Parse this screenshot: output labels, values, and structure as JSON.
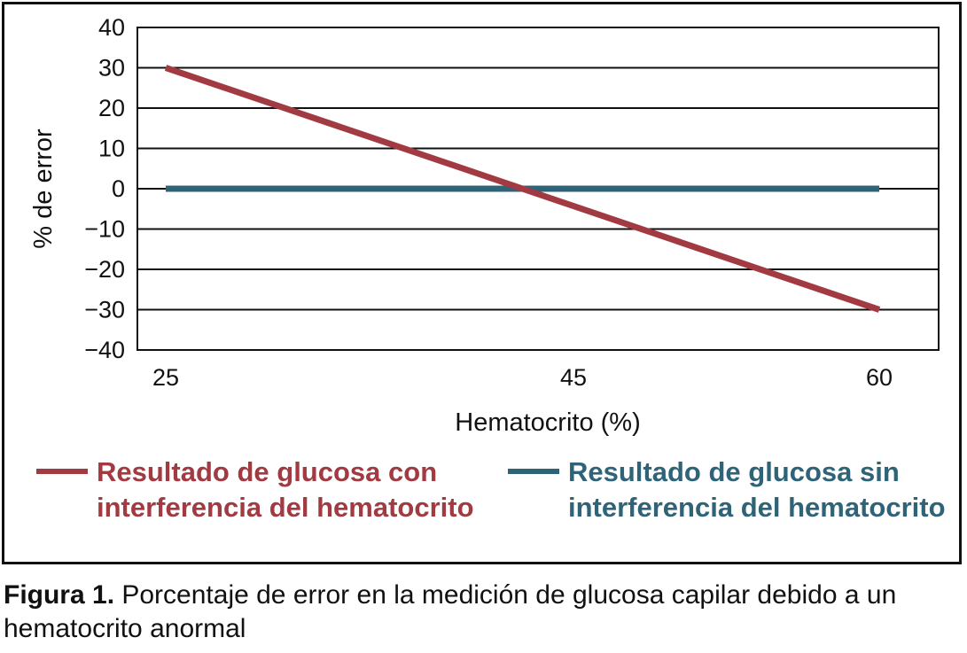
{
  "chart_data": {
    "type": "line",
    "xlabel": "Hematocrito (%)",
    "ylabel": "% de error",
    "x_ticks": [
      "25",
      "45",
      "60"
    ],
    "y_ticks": [
      "40",
      "30",
      "20",
      "10",
      "0",
      "−10",
      "−20",
      "−30",
      "−40"
    ],
    "ylim": [
      -40,
      40
    ],
    "grid": true,
    "legend_position": "bottom",
    "series": [
      {
        "name": "Resultado de glucosa con interferencia del hematocrito",
        "color": "#a23a42",
        "points": [
          {
            "x": 25,
            "y": 30
          },
          {
            "x": 60,
            "y": -30
          }
        ]
      },
      {
        "name": "Resultado de glucosa sin interferencia del hematocrito",
        "color": "#2f6478",
        "points": [
          {
            "x": 25,
            "y": 0
          },
          {
            "x": 60,
            "y": 0
          }
        ]
      }
    ]
  },
  "caption": {
    "label": "Figura 1.",
    "text": " Porcentaje de error en la medición de glucosa capilar debido a un hematocrito anormal"
  }
}
